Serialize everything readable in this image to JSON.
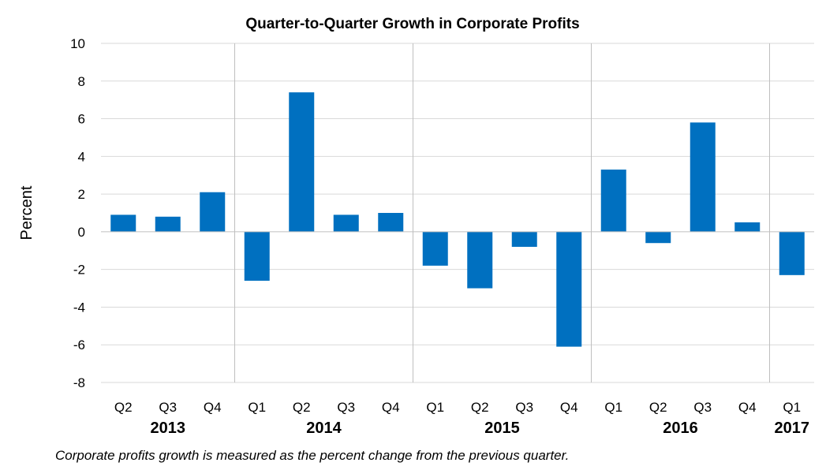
{
  "chart_data": {
    "type": "bar",
    "title": "Quarter-to-Quarter Growth in Corporate Profits",
    "ylabel": "Percent",
    "xlabel": "",
    "ylim": [
      -8,
      10
    ],
    "yticks": [
      10,
      8,
      6,
      4,
      2,
      0,
      -2,
      -4,
      -6,
      -8
    ],
    "grid": true,
    "bar_color": "#0070c0",
    "categories": [
      "Q2",
      "Q3",
      "Q4",
      "Q1",
      "Q2",
      "Q3",
      "Q4",
      "Q1",
      "Q2",
      "Q3",
      "Q4",
      "Q1",
      "Q2",
      "Q3",
      "Q4",
      "Q1"
    ],
    "year_groups": [
      {
        "label": "2013",
        "count": 3
      },
      {
        "label": "2014",
        "count": 4
      },
      {
        "label": "2015",
        "count": 4
      },
      {
        "label": "2016",
        "count": 4
      },
      {
        "label": "2017",
        "count": 1
      }
    ],
    "values": [
      0.9,
      0.8,
      2.1,
      -2.6,
      7.4,
      0.9,
      1.0,
      -1.8,
      -3.0,
      -0.8,
      -6.1,
      3.3,
      -0.6,
      5.8,
      0.5,
      -2.3
    ],
    "note": "Corporate profits growth is measured as the percent change from the previous quarter."
  }
}
